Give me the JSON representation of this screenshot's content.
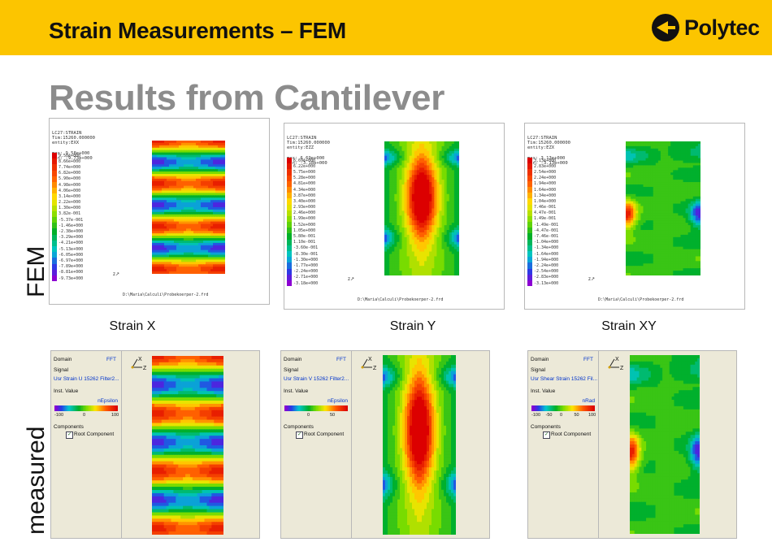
{
  "header": {
    "title": "Strain Measurements – FEM",
    "logo_text": "Polytec"
  },
  "subtitle": "Results from Cantilever",
  "row_labels": {
    "fem": "FEM",
    "measured": "measured"
  },
  "fem_panels": [
    {
      "header_lines": [
        "LC27:STRAIN",
        "Tim:15260.000000",
        "entity:EXX",
        "",
        "max: 9.58e+000",
        "min: -9.73e+000"
      ],
      "legend_values": [
        "9.58e+000",
        "8.66e+000",
        "7.74e+000",
        "6.82e+000",
        "5.90e+000",
        "4.98e+000",
        "4.06e+000",
        "3.14e+000",
        "2.22e+000",
        "1.30e+000",
        "3.82e-001",
        "-5.37e-001",
        "-1.46e+000",
        "-2.38e+000",
        "-3.29e+000",
        "-4.21e+000",
        "-5.13e+000",
        "-6.05e+000",
        "-6.97e+000",
        "-7.89e+000",
        "-8.81e+000",
        "-9.73e+000"
      ],
      "file_path": "D:\\Maria\\Calculi\\Probekoerper-2.frd",
      "caption": "Strain X",
      "pattern": "x"
    },
    {
      "header_lines": [
        "LC27:STRAIN",
        "Tim:15260.000000",
        "entity:EZZ",
        "",
        "max: 6.69e+000",
        "min: -3.18e+000"
      ],
      "legend_values": [
        "6.69e+000",
        "6.22e+000",
        "5.75e+000",
        "5.28e+000",
        "4.81e+000",
        "4.34e+000",
        "3.87e+000",
        "3.40e+000",
        "2.93e+000",
        "2.46e+000",
        "1.99e+000",
        "1.52e+000",
        "1.05e+000",
        "5.80e-001",
        "1.10e-001",
        "-3.60e-001",
        "-8.30e-001",
        "-1.30e+000",
        "-1.77e+000",
        "-2.24e+000",
        "-2.71e+000",
        "-3.18e+000"
      ],
      "file_path": "D:\\Maria\\Calculi\\Probekoerper-2.frd",
      "caption": "Strain Y",
      "pattern": "y"
    },
    {
      "header_lines": [
        "LC27:STRAIN",
        "Tim:15260.000000",
        "entity:EZX",
        "",
        "max: 3.13e+000",
        "min: -3.13e+000"
      ],
      "legend_values": [
        "3.13e+000",
        "2.83e+000",
        "2.54e+000",
        "2.24e+000",
        "1.94e+000",
        "1.64e+000",
        "1.34e+000",
        "1.04e+000",
        "7.46e-001",
        "4.47e-001",
        "1.49e-001",
        "-1.49e-001",
        "-4.47e-001",
        "-7.46e-001",
        "-1.04e+000",
        "-1.34e+000",
        "-1.64e+000",
        "-1.94e+000",
        "-2.24e+000",
        "-2.54e+000",
        "-2.83e+000",
        "-3.13e+000"
      ],
      "file_path": "D:\\Maria\\Calculi\\Probekoerper-2.frd",
      "caption": "Strain  XY",
      "pattern": "xy"
    }
  ],
  "measured_panels": [
    {
      "domain_label": "Domain",
      "domain_value": "FFT",
      "signal_label": "Signal",
      "signal_value": "Usr Strain U 15262 Filter2...",
      "inst_label": "Inst. Value",
      "unit": "nEpsilon",
      "ticks": [
        "-100",
        "0",
        "100"
      ],
      "components_label": "Components",
      "root_label": "Root Component",
      "axis_x": "X",
      "axis_z": "Z",
      "pattern": "x"
    },
    {
      "domain_label": "Domain",
      "domain_value": "FFT",
      "signal_label": "Signal",
      "signal_value": "Usr Strain V 15262 Filter2...",
      "inst_label": "Inst. Value",
      "unit": "nEpsilon",
      "ticks": [
        "0",
        "50"
      ],
      "components_label": "Components",
      "root_label": "Root Component",
      "axis_x": "X",
      "axis_z": "Z",
      "pattern": "y"
    },
    {
      "domain_label": "Domain",
      "domain_value": "FFT",
      "signal_label": "Signal",
      "signal_value": "Usr Shear Strain 15262 Fil...",
      "inst_label": "Inst. Value",
      "unit": "nRad",
      "ticks": [
        "-100",
        "-50",
        "0",
        "50",
        "100"
      ],
      "components_label": "Components",
      "root_label": "Root Component",
      "axis_x": "X",
      "axis_z": "Z",
      "pattern": "xy"
    }
  ],
  "colors": {
    "banner": "#fcc500",
    "subtitle": "#8c8c8c"
  }
}
